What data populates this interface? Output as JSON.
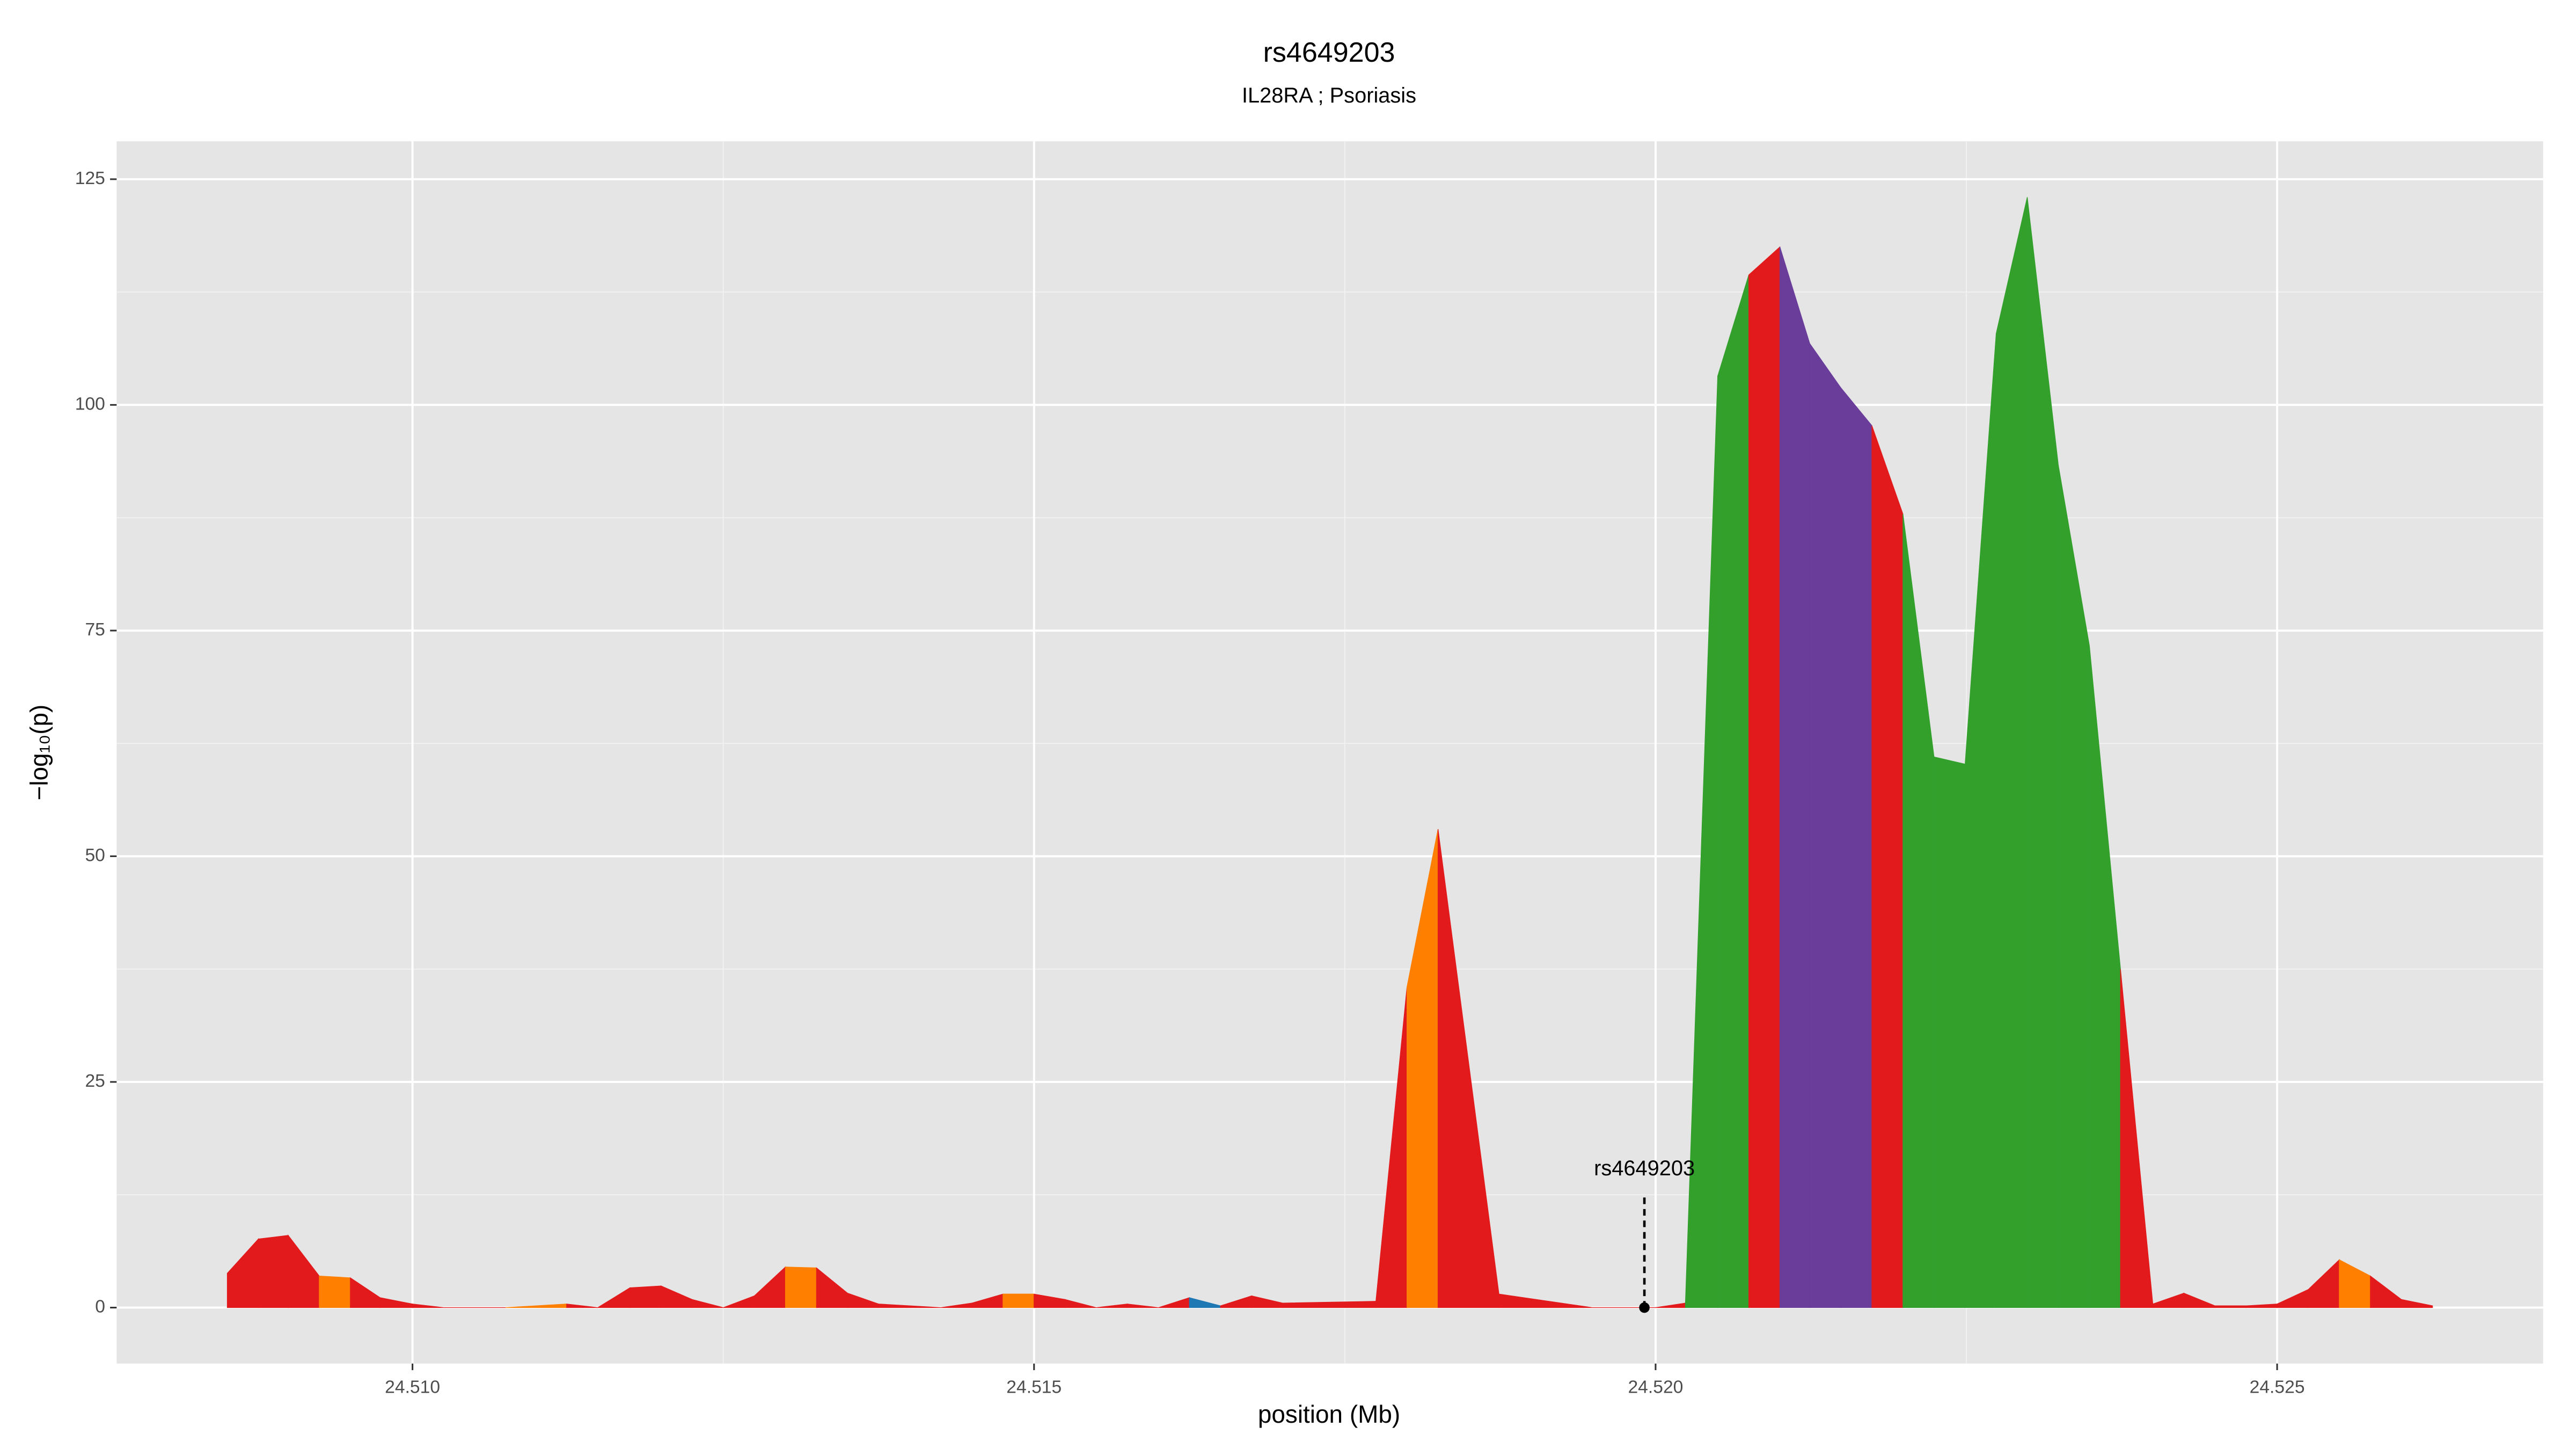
{
  "chart_data": {
    "type": "area",
    "title": "rs4649203",
    "subtitle": "IL28RA ; Psoriasis",
    "x_label": "position (Mb)",
    "y_label": "−log₁₀(p)",
    "x": [
      24.50851,
      24.50876,
      24.509,
      24.50925,
      24.5095,
      24.50974,
      24.51,
      24.51025,
      24.51075,
      24.51124,
      24.51149,
      24.51175,
      24.512,
      24.51225,
      24.5125,
      24.51275,
      24.513,
      24.51325,
      24.5135,
      24.51375,
      24.51425,
      24.5145,
      24.51475,
      24.515,
      24.51525,
      24.5155,
      24.51575,
      24.516,
      24.51625,
      24.5165,
      24.51675,
      24.517,
      24.51775,
      24.518,
      24.51825,
      24.51874,
      24.51949,
      24.52,
      24.52024,
      24.5205,
      24.52075,
      24.521,
      24.52124,
      24.52149,
      24.52174,
      24.52199,
      24.52224,
      24.52249,
      24.52274,
      24.52299,
      24.52324,
      24.52349,
      24.52374,
      24.524,
      24.52425,
      24.5245,
      24.52475,
      24.525,
      24.52525,
      24.5255,
      24.52575,
      24.526,
      24.52625
    ],
    "values": [
      3.8,
      7.6,
      8.0,
      3.5,
      3.3,
      1.1,
      0.4,
      0,
      0,
      0.4,
      0,
      2.2,
      2.4,
      0.9,
      0,
      1.3,
      4.5,
      4.4,
      1.6,
      0.4,
      0,
      0.5,
      1.5,
      1.5,
      0.9,
      0,
      0.4,
      0,
      1.1,
      0.2,
      1.3,
      0.5,
      0.7,
      35.5,
      53,
      1.5,
      0,
      0,
      0.5,
      103.2,
      114.4,
      117.5,
      106.8,
      101.9,
      97.7,
      87.9,
      61,
      60.2,
      107.9,
      123,
      93.3,
      73.3,
      37.5,
      0.4,
      1.6,
      0.2,
      0.2,
      0.4,
      2,
      5.3,
      3.5,
      0.9,
      0.2
    ],
    "segment_colors": [
      "#e31a1c",
      "#e31a1c",
      "#e31a1c",
      "#ff7f00",
      "#e31a1c",
      "#e31a1c",
      "#e31a1c",
      "#e31a1c",
      "#ff7f00",
      "#e31a1c",
      "#e31a1c",
      "#e31a1c",
      "#e31a1c",
      "#e31a1c",
      "#e31a1c",
      "#e31a1c",
      "#ff7f00",
      "#e31a1c",
      "#e31a1c",
      "#e31a1c",
      "#e31a1c",
      "#e31a1c",
      "#ff7f00",
      "#e31a1c",
      "#e31a1c",
      "#e31a1c",
      "#e31a1c",
      "#e31a1c",
      "#1f78b4",
      "#e31a1c",
      "#e31a1c",
      "#e31a1c",
      "#e31a1c",
      "#ff7f00",
      "#e31a1c",
      "#e31a1c",
      "#e31a1c",
      "#e31a1c",
      "#33a02c",
      "#33a02c",
      "#e31a1c",
      "#6a3d9a",
      "#6a3d9a",
      "#6a3d9a",
      "#e31a1c",
      "#33a02c",
      "#33a02c",
      "#33a02c",
      "#33a02c",
      "#33a02c",
      "#33a02c",
      "#33a02c",
      "#e31a1c",
      "#e31a1c",
      "#e31a1c",
      "#e31a1c",
      "#e31a1c",
      "#e31a1c",
      "#e31a1c",
      "#ff7f00",
      "#e31a1c",
      "#e31a1c"
    ],
    "annotation": {
      "label": "rs4649203",
      "x": 24.51991,
      "y": 0
    },
    "xlim": [
      24.50762,
      24.52714
    ],
    "ylim": [
      -6.2,
      129.2
    ],
    "xticks": [
      {
        "value": 24.51,
        "label": "24.510"
      },
      {
        "value": 24.515,
        "label": "24.515"
      },
      {
        "value": 24.52,
        "label": "24.520"
      },
      {
        "value": 24.525,
        "label": "24.525"
      }
    ],
    "yticks": [
      0,
      25,
      50,
      75,
      100,
      125
    ],
    "grid": true
  }
}
